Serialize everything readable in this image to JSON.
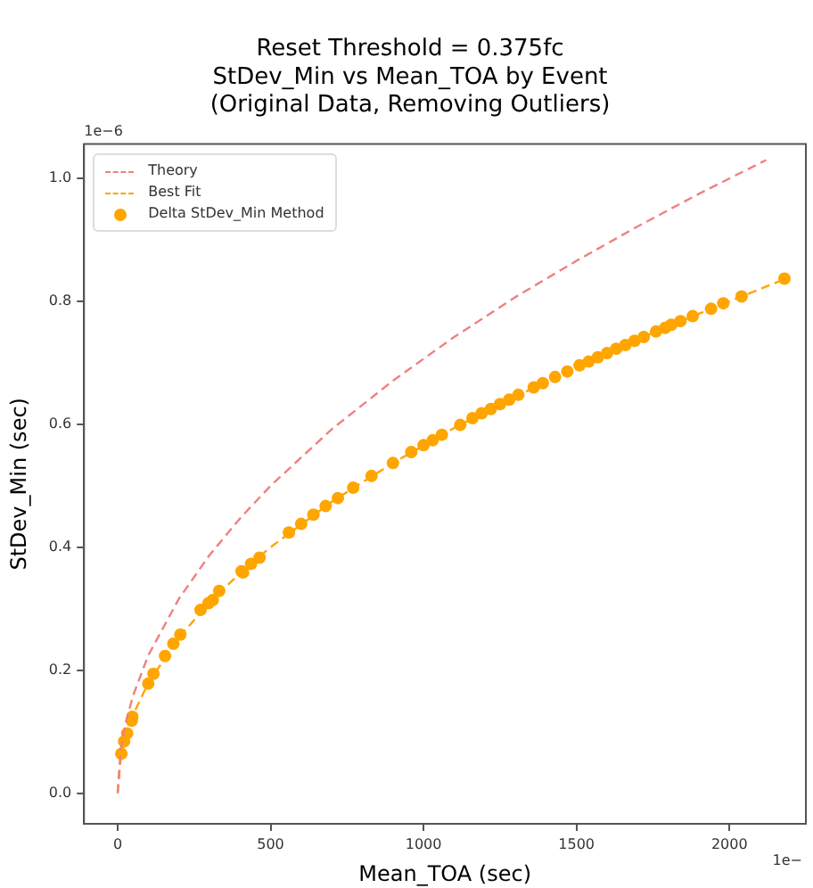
{
  "chart_data": {
    "type": "scatter",
    "title": "Reset Threshold = 0.375fc\nStDev_Min vs Mean_TOA by Event\n(Original Data, Removing Outliers)",
    "xlabel": "Mean_TOA (sec)",
    "ylabel": "StDev_Min (sec)",
    "annotations": [
      "1e−6",
      "1e−"
    ],
    "xlim": [
      -110,
      2250
    ],
    "xticks": [
      0,
      500,
      1000,
      1500,
      2000
    ],
    "ylim": [
      -0.05,
      1.056
    ],
    "yticks": [
      {
        "value": 0,
        "label": "0.0"
      },
      {
        "value": 0.2,
        "label": "0.2"
      },
      {
        "value": 0.4,
        "label": "0.4"
      },
      {
        "value": 0.6,
        "label": "0.6"
      },
      {
        "value": 0.8,
        "label": "0.8"
      },
      {
        "value": 1,
        "label": "1.0"
      }
    ],
    "grid": false,
    "legend": "top left",
    "series": [
      {
        "name": "Theory",
        "type": "line",
        "color": "#f08080",
        "line_style": "dashed",
        "marker": "none",
        "x": [
          0,
          10,
          25,
          50,
          100,
          200,
          300,
          400,
          500,
          700,
          900,
          1100,
          1300,
          1500,
          1700,
          1900,
          2120
        ],
        "values": [
          0,
          0.071,
          0.112,
          0.158,
          0.224,
          0.316,
          0.387,
          0.447,
          0.5,
          0.592,
          0.671,
          0.742,
          0.807,
          0.866,
          0.922,
          0.975,
          1.03
        ]
      },
      {
        "name": "Best Fit",
        "type": "line",
        "color": "#ffa500",
        "line_style": "dashed",
        "marker": "none",
        "x": [
          0,
          10,
          25,
          50,
          100,
          200,
          300,
          400,
          500,
          700,
          900,
          1100,
          1300,
          1500,
          1700,
          1900,
          2180
        ],
        "values": [
          0,
          0.057,
          0.09,
          0.127,
          0.179,
          0.253,
          0.31,
          0.358,
          0.4,
          0.474,
          0.537,
          0.594,
          0.645,
          0.693,
          0.738,
          0.78,
          0.836
        ]
      },
      {
        "name": "Delta StDev_Min Method",
        "type": "scatter",
        "color": "#ffa500",
        "marker": "circle",
        "x": [
          12,
          21,
          31,
          46,
          48,
          100,
          117,
          155,
          182,
          205,
          271,
          297,
          311,
          332,
          405,
          410,
          436,
          464,
          560,
          600,
          640,
          680,
          720,
          770,
          830,
          900,
          960,
          1000,
          1030,
          1060,
          1120,
          1160,
          1190,
          1220,
          1250,
          1280,
          1310,
          1360,
          1390,
          1430,
          1470,
          1510,
          1540,
          1570,
          1600,
          1630,
          1660,
          1690,
          1720,
          1760,
          1790,
          1810,
          1840,
          1880,
          1940,
          1980,
          2040,
          2180
        ],
        "values": [
          0.064,
          0.084,
          0.097,
          0.118,
          0.124,
          0.178,
          0.194,
          0.223,
          0.243,
          0.258,
          0.298,
          0.309,
          0.314,
          0.329,
          0.361,
          0.359,
          0.373,
          0.383,
          0.424,
          0.438,
          0.453,
          0.467,
          0.48,
          0.497,
          0.516,
          0.537,
          0.555,
          0.566,
          0.574,
          0.583,
          0.599,
          0.61,
          0.618,
          0.625,
          0.633,
          0.64,
          0.648,
          0.66,
          0.667,
          0.677,
          0.686,
          0.696,
          0.702,
          0.709,
          0.716,
          0.723,
          0.729,
          0.736,
          0.742,
          0.751,
          0.757,
          0.762,
          0.768,
          0.776,
          0.788,
          0.797,
          0.808,
          0.837
        ]
      }
    ]
  }
}
